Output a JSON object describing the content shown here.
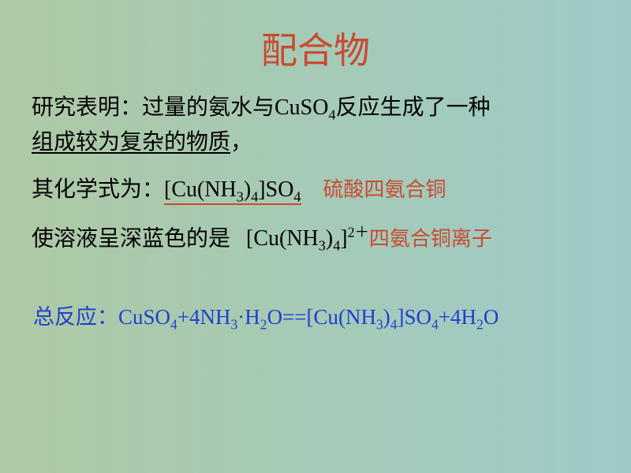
{
  "colors": {
    "title": "#c94a2f",
    "body_text": "#000000",
    "accent_red": "#c94a2f",
    "accent_blue": "#1f3fd0",
    "bg_gradient_left": "#aec9a4",
    "bg_gradient_right": "#9dcac9",
    "red_underline": "#c94a2f"
  },
  "typography": {
    "title_fontsize": 46,
    "body_fontsize": 28,
    "label_fontsize": 26,
    "overall_fontsize": 27,
    "font_family": "SimSun"
  },
  "title": "配合物",
  "p1_a": "研究表明：过量的氨水与CuSO",
  "p1_sub": "4",
  "p1_b": "反应生成了一种",
  "p1_underlined": "组成较为复杂的物质",
  "p1_c": "，",
  "p2_a": "其化学式为：",
  "p2_formula_a": "[Cu(NH",
  "p2_formula_sub1": "3",
  "p2_formula_b": ")",
  "p2_formula_sub2": "4",
  "p2_formula_c": "]SO",
  "p2_formula_sub3": "4",
  "p2_label": "硫酸四氨合铜",
  "p3_a": "使溶液呈深蓝色的是",
  "p3_formula_a": "[Cu(NH",
  "p3_formula_sub1": "3",
  "p3_formula_b": ")",
  "p3_formula_sub2": "4",
  "p3_formula_c": "]",
  "p3_formula_sup": "2＋",
  "p3_label": "四氨合铜离子",
  "overall_label": "总反应：",
  "ov_a": "CuSO",
  "ov_sub1": "4",
  "ov_b": "+4NH",
  "ov_sub2": "3",
  "ov_c": "·H",
  "ov_sub3": "2",
  "ov_d": "O==[Cu(NH",
  "ov_sub4": "3",
  "ov_e": ")",
  "ov_sub5": "4",
  "ov_f": "]SO",
  "ov_sub6": "4",
  "ov_g": "+4H",
  "ov_sub7": "2",
  "ov_h": "O"
}
